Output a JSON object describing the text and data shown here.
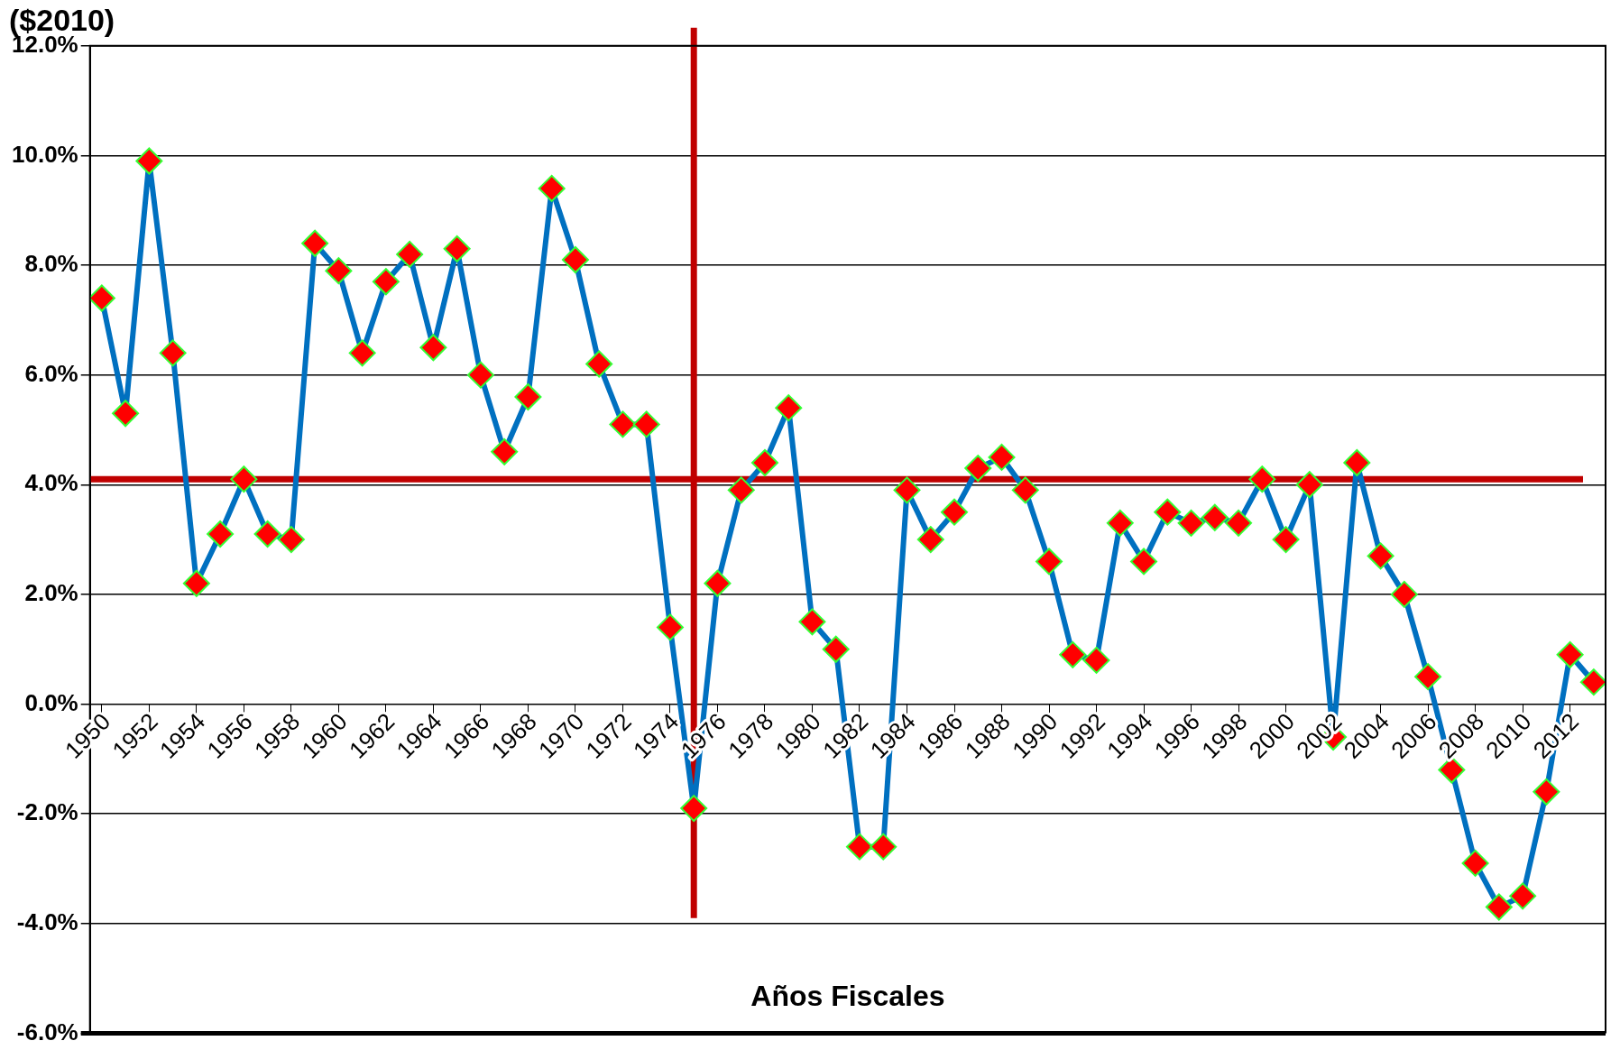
{
  "chart_data": {
    "type": "line",
    "title": "($2010)",
    "xlabel": "Años Fiscales",
    "x": [
      1950,
      1951,
      1952,
      1953,
      1954,
      1955,
      1956,
      1957,
      1958,
      1959,
      1960,
      1961,
      1962,
      1963,
      1964,
      1965,
      1966,
      1967,
      1968,
      1969,
      1970,
      1971,
      1972,
      1973,
      1974,
      1975,
      1976,
      1977,
      1978,
      1979,
      1980,
      1981,
      1982,
      1983,
      1984,
      1985,
      1986,
      1987,
      1988,
      1989,
      1990,
      1991,
      1992,
      1993,
      1994,
      1995,
      1996,
      1997,
      1998,
      1999,
      2000,
      2001,
      2002,
      2003,
      2004,
      2005,
      2006,
      2007,
      2008,
      2009,
      2010,
      2011,
      2012,
      2013
    ],
    "xlim": [
      1949.5,
      2013.5
    ],
    "xticks": [
      1950,
      1952,
      1954,
      1956,
      1958,
      1960,
      1962,
      1964,
      1966,
      1968,
      1970,
      1972,
      1974,
      1976,
      1978,
      1980,
      1982,
      1984,
      1986,
      1988,
      1990,
      1992,
      1994,
      1996,
      1998,
      2000,
      2002,
      2004,
      2006,
      2008,
      2010,
      2012
    ],
    "series": [
      {
        "color": "#0070c0",
        "values": [
          7.4,
          5.3,
          9.9,
          6.4,
          2.2,
          3.1,
          4.1,
          3.1,
          3.0,
          8.4,
          7.9,
          6.4,
          7.7,
          8.2,
          6.5,
          8.3,
          6.0,
          4.6,
          5.6,
          9.4,
          8.1,
          6.2,
          5.1,
          5.1,
          1.4,
          -1.9,
          2.2,
          3.9,
          4.4,
          5.4,
          1.5,
          1.0,
          -2.6,
          -2.6,
          3.9,
          3.0,
          3.5,
          4.3,
          4.5,
          3.9,
          2.6,
          0.9,
          0.8,
          3.3,
          2.6,
          3.5,
          3.3,
          3.4,
          3.3,
          4.1,
          3.0,
          4.0,
          -0.6,
          4.4,
          2.7,
          2.0,
          0.5,
          -1.2,
          -2.9,
          -3.7,
          -3.5,
          -1.6,
          0.9,
          0.4
        ]
      }
    ],
    "ylim": [
      -6,
      12
    ],
    "yticks": [
      {
        "value": -6,
        "label": "-6.0%"
      },
      {
        "value": -4,
        "label": "-4.0%"
      },
      {
        "value": -2,
        "label": "-2.0%"
      },
      {
        "value": 0,
        "label": "0.0%"
      },
      {
        "value": 2,
        "label": "2.0%"
      },
      {
        "value": 4,
        "label": "4.0%"
      },
      {
        "value": 6,
        "label": "6.0%"
      },
      {
        "value": 8,
        "label": "8.0%"
      },
      {
        "value": 10,
        "label": "10.0%"
      },
      {
        "value": 12,
        "label": "12.0%"
      }
    ],
    "grid": "y",
    "legend": false,
    "marker": "diamond",
    "line_style": "solid",
    "ref_lines": [
      {
        "axis": "y",
        "value": 4.1,
        "color": "#c00000"
      },
      {
        "axis": "x",
        "value": 1975,
        "color": "#c00000"
      }
    ]
  }
}
